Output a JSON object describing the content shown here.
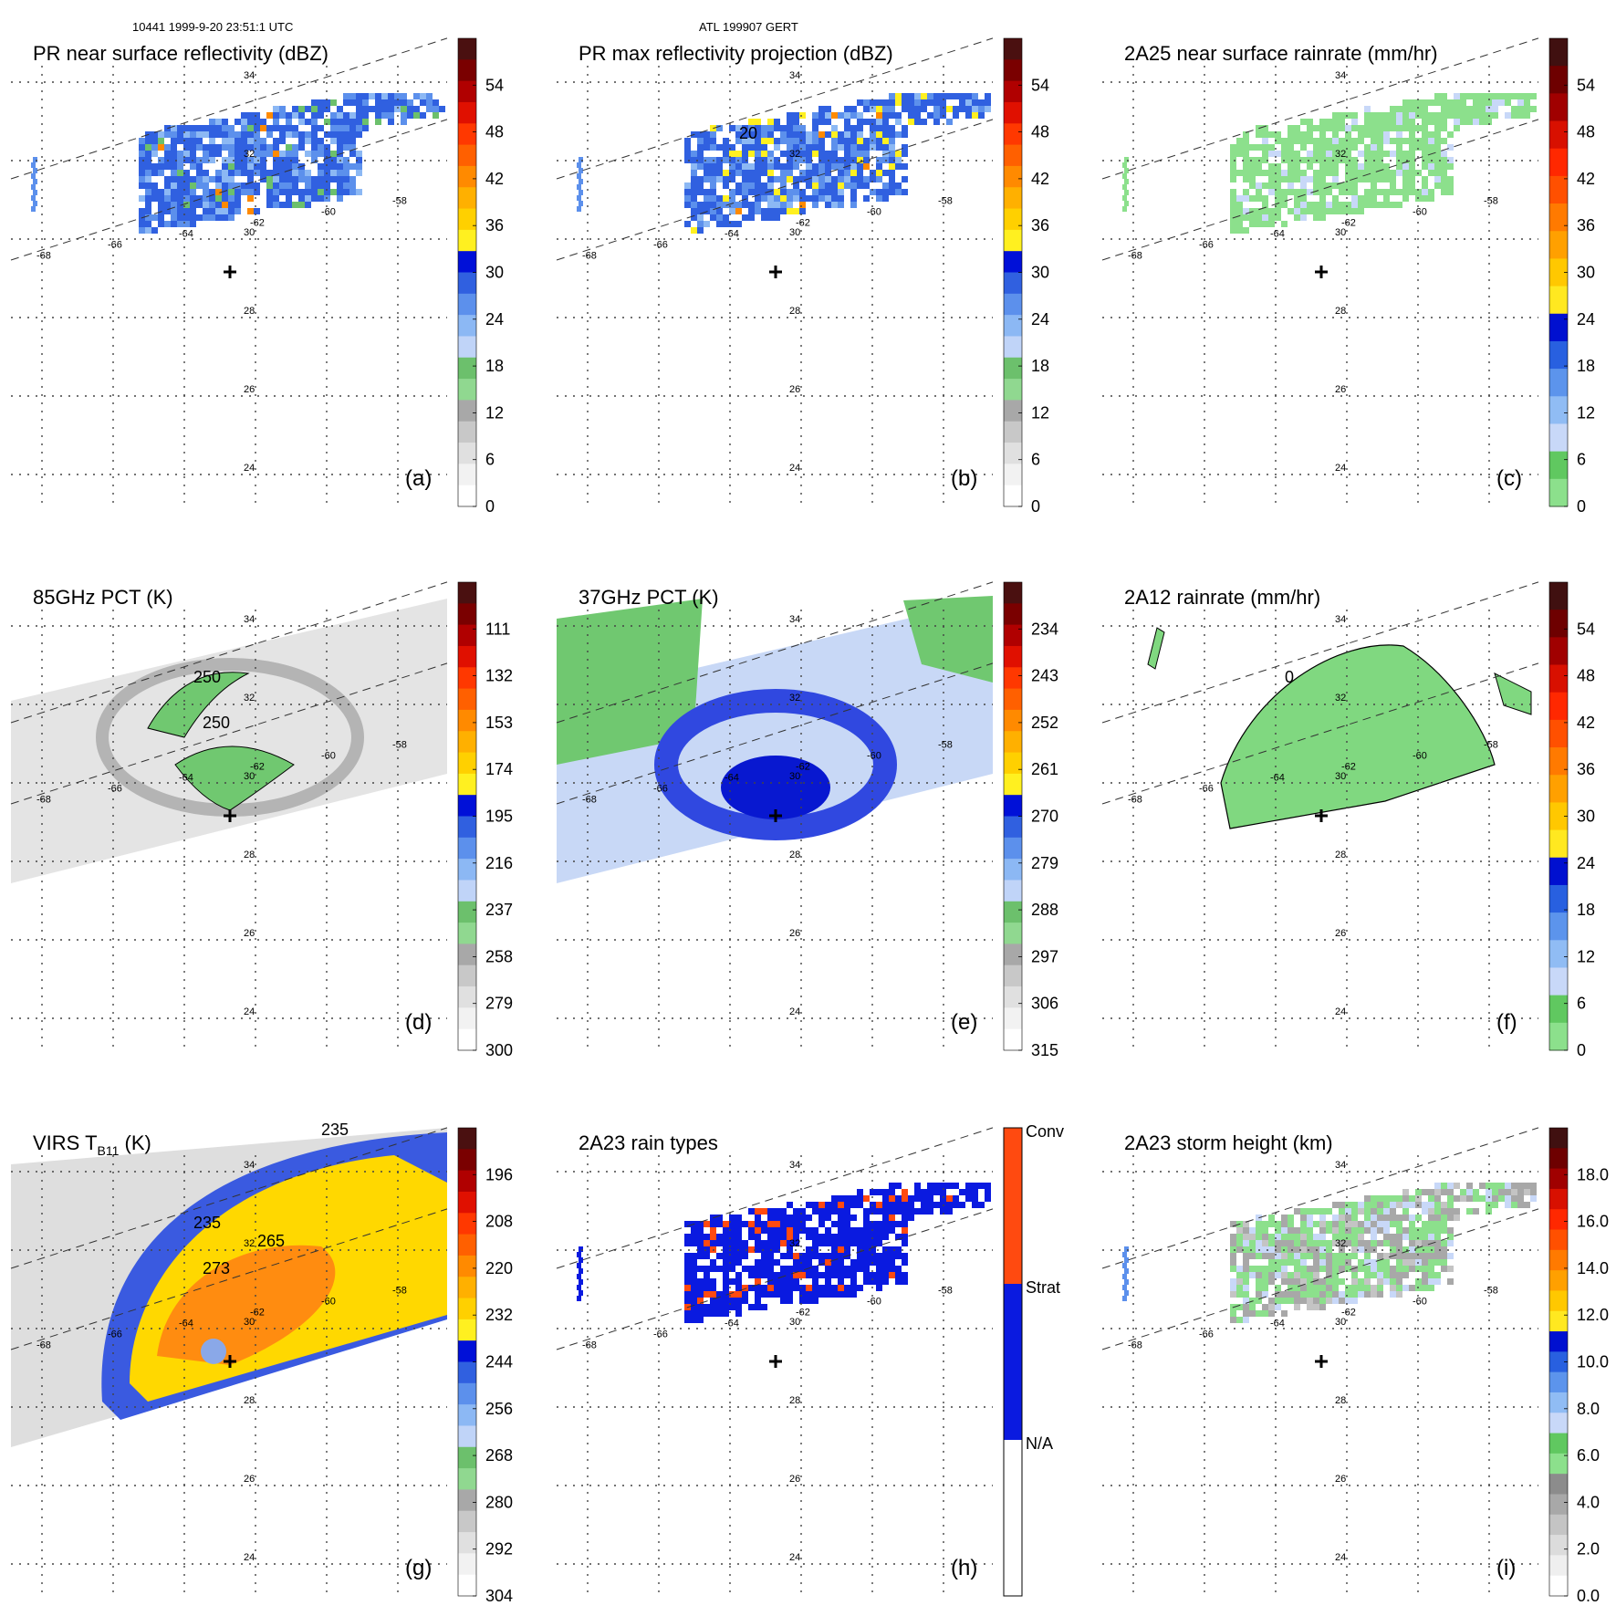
{
  "header": {
    "orbit_time": "10441 1999-9-20 23:51:1 UTC",
    "storm": "ATL 199907 GERT"
  },
  "lon_ticks": [
    "-68",
    "-66",
    "-64",
    "-62",
    "-60",
    "-58"
  ],
  "lat_ticks": [
    "34",
    "32",
    "30",
    "28",
    "26",
    "24"
  ],
  "panels": [
    {
      "id": "a",
      "title": "PR near surface reflectivity (dBZ)",
      "label": "(a)",
      "scheme": "dbz",
      "field": "swath_rain",
      "contours": [],
      "cb_labels": [
        "54",
        "48",
        "42",
        "36",
        "30",
        "24",
        "18",
        "12",
        "6",
        "0"
      ]
    },
    {
      "id": "b",
      "title": "PR max reflectivity projection (dBZ)",
      "label": "(b)",
      "scheme": "dbz",
      "field": "swath_rain_max",
      "contours": [
        "20"
      ],
      "cb_labels": [
        "54",
        "48",
        "42",
        "36",
        "30",
        "24",
        "18",
        "12",
        "6",
        "0"
      ]
    },
    {
      "id": "c",
      "title": "2A25 near surface rainrate (mm/hr)",
      "label": "(c)",
      "scheme": "rain",
      "field": "swath_rain_green",
      "contours": [],
      "cb_labels": [
        "54",
        "48",
        "42",
        "36",
        "30",
        "24",
        "18",
        "12",
        "6",
        "0"
      ]
    },
    {
      "id": "d",
      "title": "85GHz PCT (K)",
      "label": "(d)",
      "scheme": "pct85",
      "field": "tmi_gray",
      "contours": [
        "250",
        "250"
      ],
      "cb_labels": [
        "111",
        "132",
        "153",
        "174",
        "195",
        "216",
        "237",
        "258",
        "279",
        "300"
      ]
    },
    {
      "id": "e",
      "title": "37GHz PCT (K)",
      "label": "(e)",
      "scheme": "pct37",
      "field": "tmi_blue",
      "contours": [],
      "cb_labels": [
        "234",
        "243",
        "252",
        "261",
        "270",
        "279",
        "288",
        "297",
        "306",
        "315"
      ]
    },
    {
      "id": "f",
      "title": "2A12 rainrate (mm/hr)",
      "label": "(f)",
      "scheme": "rain",
      "field": "tmi_rain",
      "contours": [
        "0"
      ],
      "cb_labels": [
        "54",
        "48",
        "42",
        "36",
        "30",
        "24",
        "18",
        "12",
        "6",
        "0"
      ]
    },
    {
      "id": "g",
      "title": "VIRS T",
      "title_sub": "B11",
      "title_end": " (K)",
      "label": "(g)",
      "scheme": "virs",
      "field": "virs_ir",
      "contours": [
        "235",
        "273",
        "265",
        "235"
      ],
      "cb_labels": [
        "196",
        "208",
        "220",
        "232",
        "244",
        "256",
        "268",
        "280",
        "292",
        "304"
      ]
    },
    {
      "id": "h",
      "title": "2A23 rain types",
      "label": "(h)",
      "scheme": "types",
      "field": "swath_types",
      "contours": [],
      "cb_labels": [
        "Conv",
        "Strat",
        "N/A"
      ]
    },
    {
      "id": "i",
      "title": "2A23 storm height (km)",
      "label": "(i)",
      "scheme": "height",
      "field": "swath_height",
      "contours": [],
      "cb_labels": [
        "18.0",
        "16.0",
        "14.0",
        "12.0",
        "10.0",
        "8.0",
        "6.0",
        "4.0",
        "2.0",
        "0.0"
      ]
    }
  ],
  "storm_center_marker": "plus-icon",
  "colors": {
    "dbz": [
      "#ffffff",
      "#f2f2f2",
      "#e0e0e0",
      "#c8c8c8",
      "#a8a8a8",
      "#90d890",
      "#6cc06c",
      "#c0d4f8",
      "#8cb8f4",
      "#5c90ec",
      "#3060e0",
      "#0010d8",
      "#fff020",
      "#ffd000",
      "#ffb000",
      "#ff8a00",
      "#ff6000",
      "#ff3800",
      "#e01000",
      "#b00000",
      "#7a0000",
      "#4a1010"
    ],
    "rain": [
      "#8ce08c",
      "#60c860",
      "#c8d8f8",
      "#90bcf4",
      "#5c94ec",
      "#2860e0",
      "#0010d0",
      "#ffe820",
      "#ffc800",
      "#ffa000",
      "#ff7a00",
      "#ff5000",
      "#ff2800",
      "#d81000",
      "#a00000",
      "#6e0000",
      "#401010"
    ],
    "gray": [
      "#ffffff",
      "#efefef",
      "#dcdcdc",
      "#c4c4c4",
      "#a8a8a8",
      "#8c8c8c"
    ],
    "types": [
      "#ff4a10",
      "#0a1ae0",
      "#ffffff"
    ],
    "swath_dash": "#333333"
  }
}
